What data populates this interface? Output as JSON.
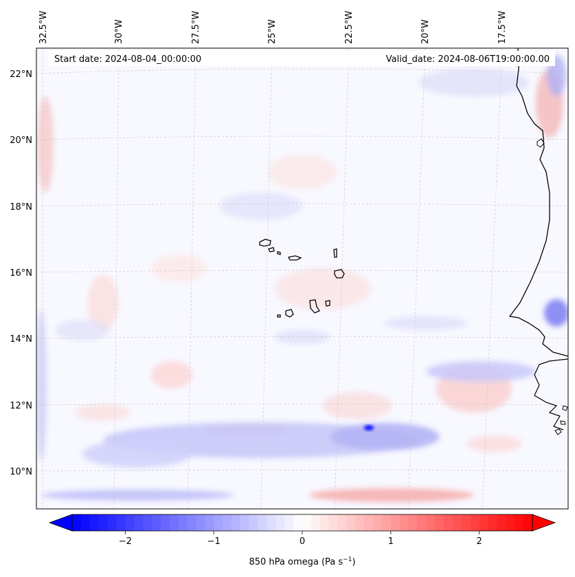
{
  "header": {
    "start_date": "Start date: 2024-08-04_00:00:00",
    "valid_date": "Valid_date: 2024-08-06T19:00:00.00"
  },
  "map": {
    "lon_labels": [
      "32.5°W",
      "30°W",
      "27.5°W",
      "25°W",
      "22.5°W",
      "20°W",
      "17.5°W"
    ],
    "lat_labels": [
      "22°N",
      "20°N",
      "18°N",
      "16°N",
      "14°N",
      "12°N",
      "10°N"
    ],
    "gridlines": true,
    "colormap": "bwr"
  },
  "colorbar": {
    "ticks": [
      "−2",
      "−1",
      "0",
      "1",
      "2"
    ],
    "tick_values": [
      -2,
      -1,
      0,
      1,
      2
    ],
    "range": [
      -2.6,
      2.6
    ],
    "label": "850 hPa omega (Pa s",
    "label_sup": "−1",
    "label_close": ")",
    "colors": {
      "negative": "#0000ff",
      "zero": "#ffffff",
      "positive": "#ff0000"
    }
  }
}
